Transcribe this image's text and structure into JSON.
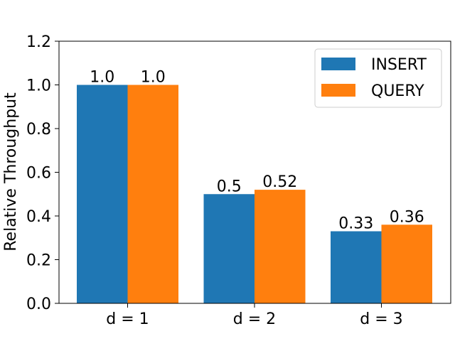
{
  "chart_data": {
    "type": "bar",
    "categories": [
      "d = 1",
      "d = 2",
      "d = 3"
    ],
    "series": [
      {
        "name": "INSERT",
        "values": [
          1.0,
          0.5,
          0.33
        ],
        "labels": [
          "1.0",
          "0.5",
          "0.33"
        ],
        "color": "#1f77b4"
      },
      {
        "name": "QUERY",
        "values": [
          1.0,
          0.52,
          0.36
        ],
        "labels": [
          "1.0",
          "0.52",
          "0.36"
        ],
        "color": "#ff7f0e"
      }
    ],
    "ylabel": "Relative Throughput",
    "ylim": [
      0,
      1.2
    ],
    "yticks": [
      "0.0",
      "0.2",
      "0.4",
      "0.6",
      "0.8",
      "1.0",
      "1.2"
    ],
    "grid": false,
    "legend": "top-right"
  }
}
